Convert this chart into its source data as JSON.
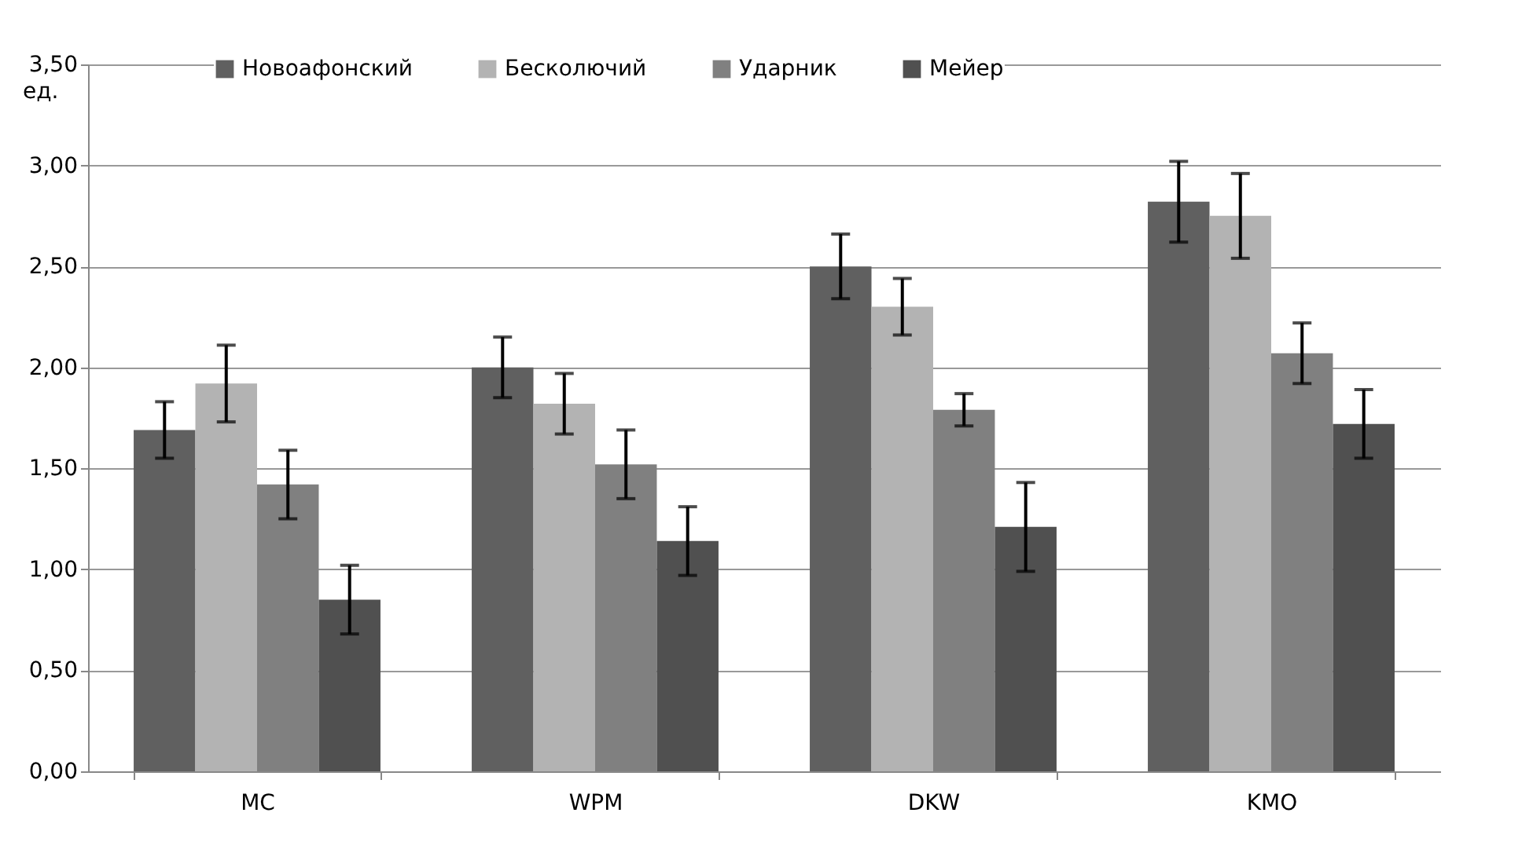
{
  "chart_data": {
    "type": "bar",
    "ylabel": "ед.",
    "categories": [
      "MC",
      "WPM",
      "DKW",
      "KMO"
    ],
    "series": [
      {
        "name": "Новоафонский",
        "color": "#606060",
        "values": [
          1.69,
          2.0,
          2.5,
          2.82
        ],
        "errors": [
          0.14,
          0.15,
          0.16,
          0.2
        ]
      },
      {
        "name": "Бесколючий",
        "color": "#b3b3b3",
        "values": [
          1.92,
          1.82,
          2.3,
          2.75
        ],
        "errors": [
          0.19,
          0.15,
          0.14,
          0.21
        ]
      },
      {
        "name": "Ударник",
        "color": "#808080",
        "values": [
          1.42,
          1.52,
          1.79,
          2.07
        ],
        "errors": [
          0.17,
          0.17,
          0.08,
          0.15
        ]
      },
      {
        "name": "Мейер",
        "color": "#505050",
        "values": [
          0.85,
          1.14,
          1.21,
          1.72
        ],
        "errors": [
          0.17,
          0.17,
          0.22,
          0.17
        ]
      }
    ],
    "ylim": [
      0,
      3.5
    ],
    "yticks": [
      {
        "value": 0,
        "label": "0,00"
      },
      {
        "value": 0.5,
        "label": "0,50"
      },
      {
        "value": 1,
        "label": "1,00"
      },
      {
        "value": 1.5,
        "label": "1,50"
      },
      {
        "value": 2,
        "label": "2,00"
      },
      {
        "value": 2.5,
        "label": "2,50"
      },
      {
        "value": 3,
        "label": "3,00"
      },
      {
        "value": 3.5,
        "label": "3,50"
      }
    ],
    "grid": "y",
    "legend": "top"
  }
}
